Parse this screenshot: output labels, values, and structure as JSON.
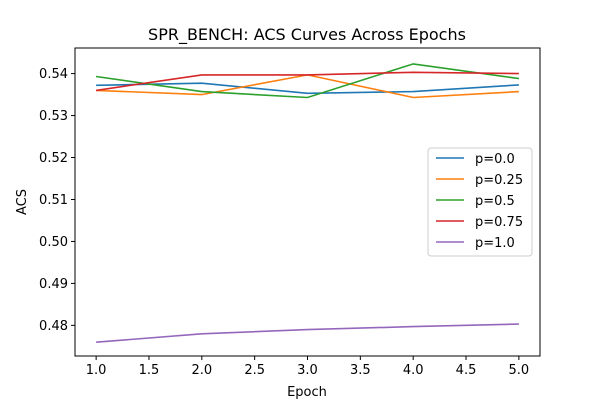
{
  "chart_data": {
    "type": "line",
    "title": "SPR_BENCH: ACS Curves Across Epochs",
    "xlabel": "Epoch",
    "ylabel": "ACS",
    "x": [
      1,
      2,
      3,
      4,
      5
    ],
    "xlim": [
      0.8,
      5.2
    ],
    "ylim": [
      0.4727,
      0.5461
    ],
    "xticks": [
      1.0,
      1.5,
      2.0,
      2.5,
      3.0,
      3.5,
      4.0,
      4.5,
      5.0
    ],
    "xtick_labels": [
      "1.0",
      "1.5",
      "2.0",
      "2.5",
      "3.0",
      "3.5",
      "4.0",
      "4.5",
      "5.0"
    ],
    "yticks": [
      0.48,
      0.49,
      0.5,
      0.51,
      0.52,
      0.53,
      0.54
    ],
    "ytick_labels": [
      "0.48",
      "0.49",
      "0.50",
      "0.51",
      "0.52",
      "0.53",
      "0.54"
    ],
    "grid": false,
    "legend_position": "center-right",
    "series": [
      {
        "name": "p=0.0",
        "color": "#1f77b4",
        "values": [
          0.5372,
          0.5377,
          0.5353,
          0.5357,
          0.5373
        ]
      },
      {
        "name": "p=0.25",
        "color": "#ff7f0e",
        "values": [
          0.536,
          0.535,
          0.5397,
          0.5343,
          0.5357
        ]
      },
      {
        "name": "p=0.5",
        "color": "#2ca02c",
        "values": [
          0.5393,
          0.5357,
          0.5343,
          0.5423,
          0.5388
        ]
      },
      {
        "name": "p=0.75",
        "color": "#d62728",
        "values": [
          0.536,
          0.5397,
          0.5397,
          0.5403,
          0.54
        ]
      },
      {
        "name": "p=1.0",
        "color": "#9467bd",
        "values": [
          0.476,
          0.478,
          0.479,
          0.4797,
          0.4803
        ]
      }
    ]
  }
}
